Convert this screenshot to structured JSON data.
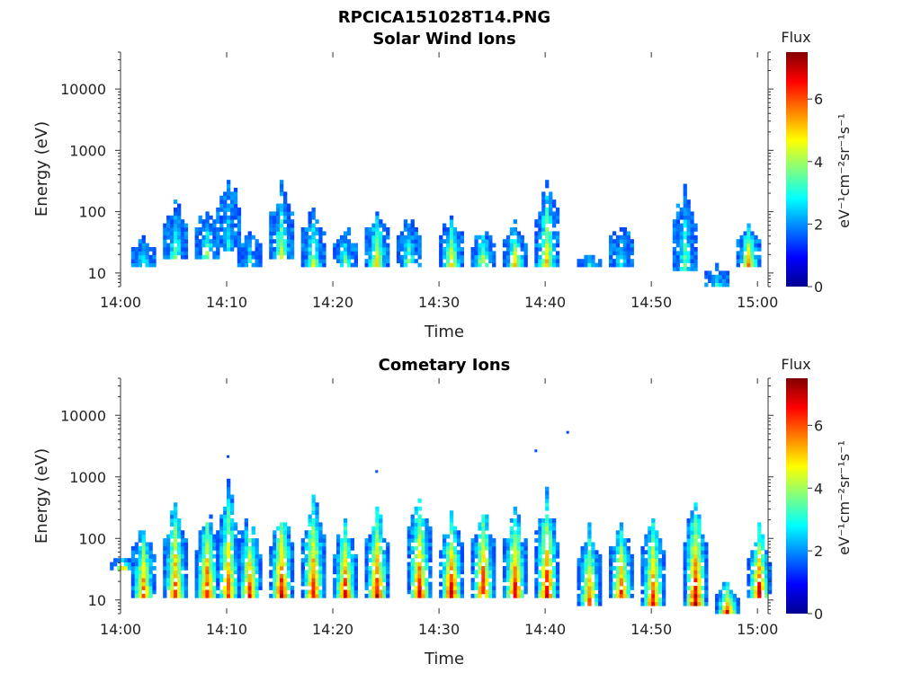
{
  "figure": {
    "title": "RPCICA151028T14.PNG"
  },
  "colorbar": {
    "title": "Flux",
    "unit": "eV⁻¹cm⁻²sr⁻¹s⁻¹",
    "ticks": [
      "0",
      "2",
      "4",
      "6"
    ],
    "range": [
      0,
      7.5
    ],
    "colormap": "jet"
  },
  "chart_data": [
    {
      "type": "heatmap",
      "title": "Solar Wind Ions",
      "xlabel": "Time",
      "ylabel": "Energy (eV)",
      "x_ticks": [
        "14:00",
        "14:10",
        "14:20",
        "14:30",
        "14:40",
        "14:50",
        "15:00"
      ],
      "y_ticks": [
        "10",
        "100",
        "1000",
        "10000"
      ],
      "x_range": [
        "14:00",
        "15:01"
      ],
      "y_range": [
        6,
        40000
      ],
      "y_scale": "log",
      "bursts": [
        {
          "t": "14:02",
          "e_lo": 12,
          "e_hi": 40,
          "peak": 3.5
        },
        {
          "t": "14:05",
          "e_lo": 15,
          "e_hi": 180,
          "peak": 3.8
        },
        {
          "t": "14:08",
          "e_lo": 15,
          "e_hi": 150,
          "peak": 4.0
        },
        {
          "t": "14:10",
          "e_lo": 20,
          "e_hi": 600,
          "peak": 3.0
        },
        {
          "t": "14:12",
          "e_lo": 12,
          "e_hi": 50,
          "peak": 3.5
        },
        {
          "t": "14:15",
          "e_lo": 15,
          "e_hi": 350,
          "peak": 4.5
        },
        {
          "t": "14:18",
          "e_lo": 12,
          "e_hi": 150,
          "peak": 4.3
        },
        {
          "t": "14:21",
          "e_lo": 12,
          "e_hi": 60,
          "peak": 3.8
        },
        {
          "t": "14:24",
          "e_lo": 12,
          "e_hi": 140,
          "peak": 5.0
        },
        {
          "t": "14:27",
          "e_lo": 12,
          "e_hi": 100,
          "peak": 4.0
        },
        {
          "t": "14:31",
          "e_lo": 12,
          "e_hi": 100,
          "peak": 5.2
        },
        {
          "t": "14:34",
          "e_lo": 12,
          "e_hi": 60,
          "peak": 4.8
        },
        {
          "t": "14:37",
          "e_lo": 12,
          "e_hi": 80,
          "peak": 5.0
        },
        {
          "t": "14:40",
          "e_lo": 12,
          "e_hi": 400,
          "peak": 5.2
        },
        {
          "t": "14:44",
          "e_lo": 12,
          "e_hi": 20,
          "peak": 3.2
        },
        {
          "t": "14:47",
          "e_lo": 12,
          "e_hi": 70,
          "peak": 3.2
        },
        {
          "t": "14:53",
          "e_lo": 10,
          "e_hi": 350,
          "peak": 3.8
        },
        {
          "t": "14:56",
          "e_lo": 6,
          "e_hi": 14,
          "peak": 3.3
        },
        {
          "t": "14:59",
          "e_lo": 12,
          "e_hi": 70,
          "peak": 5.8
        }
      ]
    },
    {
      "type": "heatmap",
      "title": "Cometary Ions",
      "xlabel": "Time",
      "ylabel": "Energy (eV)",
      "x_ticks": [
        "14:00",
        "14:10",
        "14:20",
        "14:30",
        "14:40",
        "14:50",
        "15:00"
      ],
      "y_ticks": [
        "10",
        "100",
        "1000",
        "10000"
      ],
      "x_range": [
        "14:00",
        "15:01"
      ],
      "y_range": [
        6,
        40000
      ],
      "y_scale": "log",
      "bursts": [
        {
          "t": "14:00",
          "e_lo": 30,
          "e_hi": 50,
          "peak": 5.5
        },
        {
          "t": "14:02",
          "e_lo": 10,
          "e_hi": 220,
          "peak": 6.2
        },
        {
          "t": "14:05",
          "e_lo": 10,
          "e_hi": 600,
          "peak": 6.5
        },
        {
          "t": "14:08",
          "e_lo": 10,
          "e_hi": 400,
          "peak": 6.8
        },
        {
          "t": "14:10",
          "e_lo": 10,
          "e_hi": 1100,
          "peak": 6.2
        },
        {
          "t": "14:12",
          "e_lo": 10,
          "e_hi": 300,
          "peak": 6.5
        },
        {
          "t": "14:15",
          "e_lo": 10,
          "e_hi": 500,
          "peak": 7.0
        },
        {
          "t": "14:18",
          "e_lo": 10,
          "e_hi": 700,
          "peak": 6.8
        },
        {
          "t": "14:21",
          "e_lo": 10,
          "e_hi": 300,
          "peak": 6.8
        },
        {
          "t": "14:24",
          "e_lo": 10,
          "e_hi": 500,
          "peak": 7.0
        },
        {
          "t": "14:28",
          "e_lo": 10,
          "e_hi": 700,
          "peak": 7.0
        },
        {
          "t": "14:31",
          "e_lo": 10,
          "e_hi": 300,
          "peak": 7.2
        },
        {
          "t": "14:34",
          "e_lo": 10,
          "e_hi": 500,
          "peak": 7.0
        },
        {
          "t": "14:37",
          "e_lo": 10,
          "e_hi": 450,
          "peak": 7.0
        },
        {
          "t": "14:40",
          "e_lo": 10,
          "e_hi": 700,
          "peak": 7.2
        },
        {
          "t": "14:44",
          "e_lo": 8,
          "e_hi": 200,
          "peak": 6.2
        },
        {
          "t": "14:47",
          "e_lo": 10,
          "e_hi": 250,
          "peak": 6.5
        },
        {
          "t": "14:50",
          "e_lo": 8,
          "e_hi": 400,
          "peak": 6.5
        },
        {
          "t": "14:54",
          "e_lo": 8,
          "e_hi": 600,
          "peak": 7.2
        },
        {
          "t": "14:57",
          "e_lo": 6,
          "e_hi": 20,
          "peak": 6.5
        },
        {
          "t": "15:00",
          "e_lo": 10,
          "e_hi": 200,
          "peak": 7.2
        }
      ],
      "isolated_points": [
        {
          "t": "14:10",
          "e": 2100
        },
        {
          "t": "14:24",
          "e": 1200
        },
        {
          "t": "14:39",
          "e": 2600
        },
        {
          "t": "14:42",
          "e": 5200
        }
      ]
    }
  ]
}
